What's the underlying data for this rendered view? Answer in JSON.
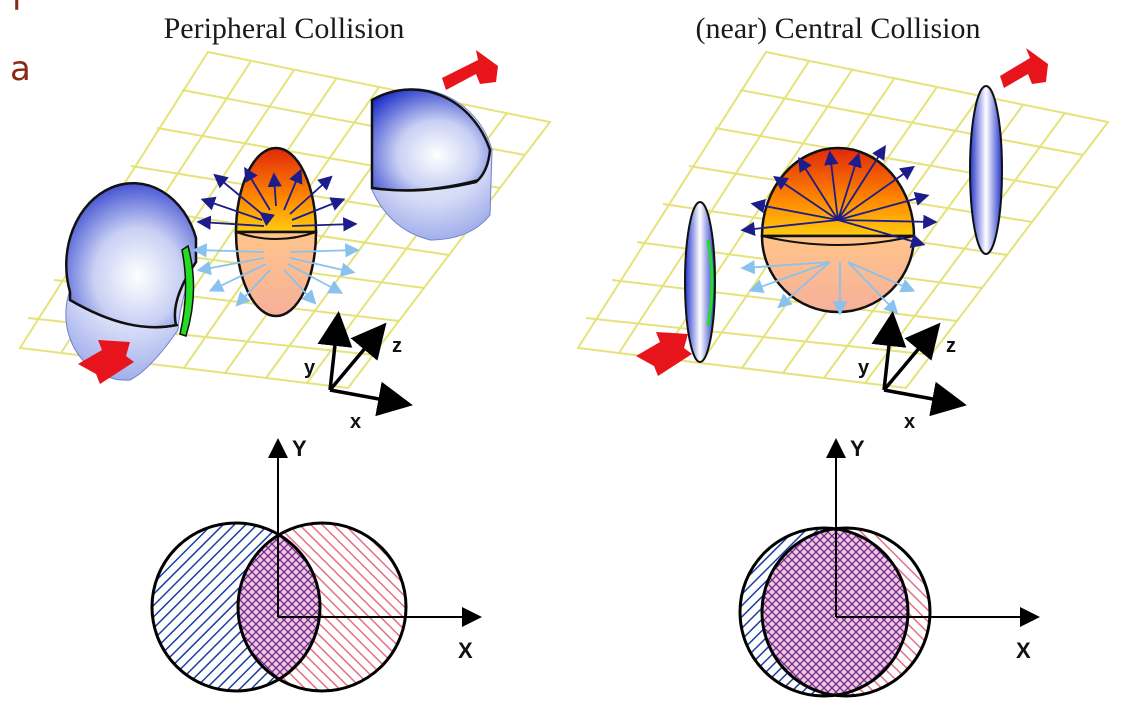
{
  "header": {
    "clipped_letter_1": "l",
    "clipped_letter_2": "a"
  },
  "panels": [
    {
      "title": "Peripheral Collision",
      "axes3d": {
        "x": "x",
        "y": "y",
        "z": "z"
      },
      "axes2d": {
        "x": "X",
        "y": "Y"
      }
    },
    {
      "title": "(near) Central Collision",
      "axes3d": {
        "x": "x",
        "y": "y",
        "z": "z"
      },
      "axes2d": {
        "x": "X",
        "y": "Y"
      }
    }
  ],
  "colors": {
    "grid": "#e6e27a",
    "nucleus_blue": "#2233cc",
    "fireball_top": "#e0280a",
    "fireball_mid": "#ffb400",
    "fireball_bottom": "#f6a98a",
    "flow_arrow_dark": "#1c1c8a",
    "flow_arrow_light": "#8ac2ee",
    "overlap_green": "#22dd22",
    "beam_arrow": "#e8141c",
    "hatch_blue": "#1b3fa0",
    "hatch_pink": "#e46f8a"
  }
}
